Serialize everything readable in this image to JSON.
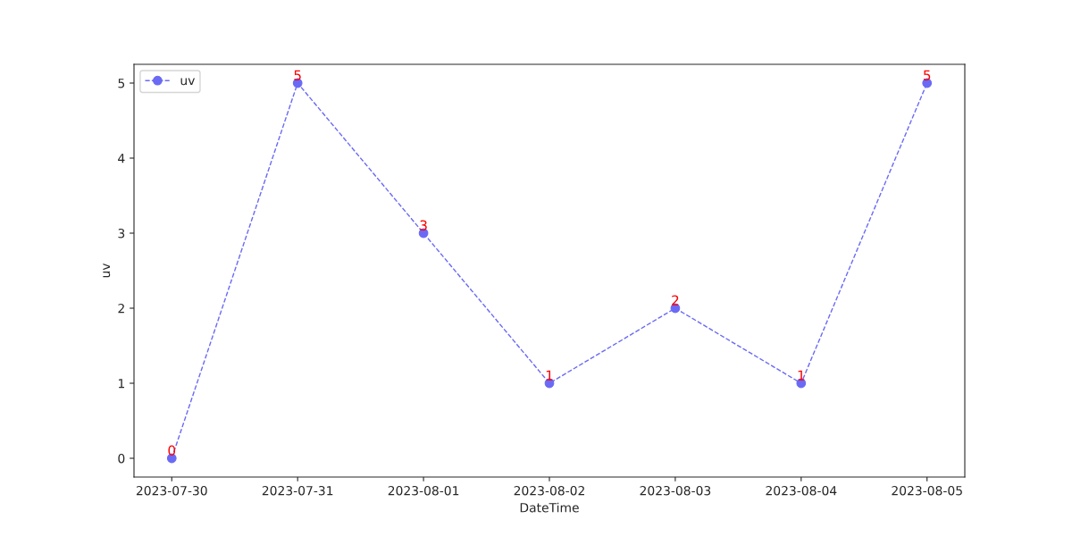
{
  "chart_data": {
    "type": "line",
    "xlabel": "DateTime",
    "ylabel": "uv",
    "categories": [
      "2023-07-30",
      "2023-07-31",
      "2023-08-01",
      "2023-08-02",
      "2023-08-03",
      "2023-08-04",
      "2023-08-05"
    ],
    "series": [
      {
        "name": "uv",
        "color": "#6a6af5",
        "values": [
          0,
          5,
          3,
          1,
          2,
          1,
          5
        ]
      }
    ],
    "ylim": [
      -0.25,
      5.25
    ],
    "yticks": [
      0,
      1,
      2,
      3,
      4,
      5
    ],
    "marker": "circle",
    "line_style": "dashed",
    "data_labels": true,
    "legend": "top left",
    "grid": false
  }
}
